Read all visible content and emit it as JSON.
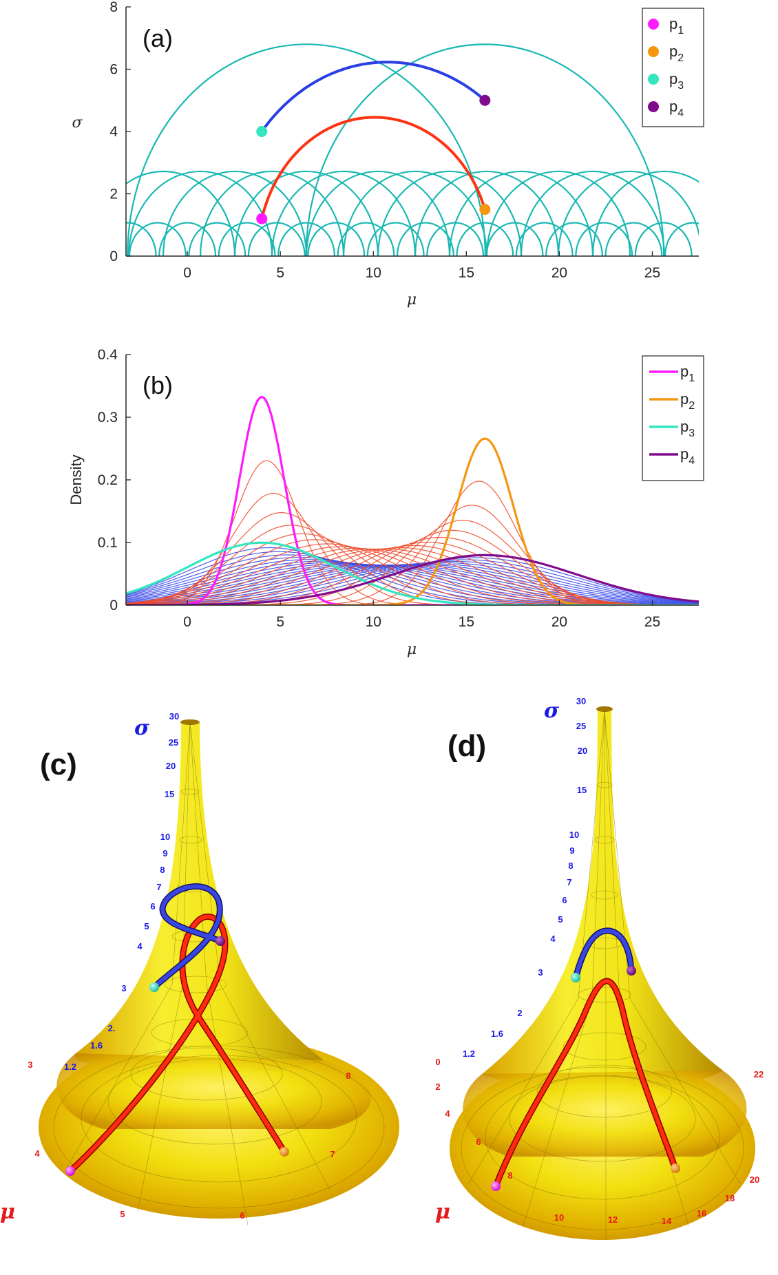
{
  "chart_data": [
    {
      "panel": "(a)",
      "type": "line",
      "xlabel": "μ",
      "ylabel": "σ",
      "xlim": [
        -3.3,
        27.5
      ],
      "ylim": [
        0,
        8
      ],
      "xticks": [
        "0",
        "5",
        "10",
        "15",
        "20",
        "25"
      ],
      "yticks": [
        "0",
        "2",
        "4",
        "6",
        "8"
      ],
      "legend": {
        "position": "top-right",
        "entries": [
          "p1",
          "p2",
          "p3",
          "p4"
        ]
      },
      "points": [
        {
          "name": "p1",
          "mu": 4,
          "sigma": 1.2,
          "color": "#ff1aff"
        },
        {
          "name": "p2",
          "mu": 16,
          "sigma": 1.5,
          "color": "#f5960f"
        },
        {
          "name": "p3",
          "mu": 4,
          "sigma": 4.0,
          "color": "#33e6bf"
        },
        {
          "name": "p4",
          "mu": 16,
          "sigma": 5.0,
          "color": "#800b8c"
        }
      ],
      "geodesics": [
        {
          "from": "p1",
          "to": "p2",
          "color": "#ff3311"
        },
        {
          "from": "p3",
          "to": "p4",
          "color": "#2a3ee6"
        }
      ],
      "tessellation_color": "#19b8b3"
    },
    {
      "panel": "(b)",
      "type": "line",
      "xlabel": "μ",
      "ylabel": "Density",
      "xlim": [
        -3.3,
        27.5
      ],
      "ylim": [
        0,
        0.4
      ],
      "xticks": [
        "0",
        "5",
        "10",
        "15",
        "20",
        "25"
      ],
      "yticks": [
        "0",
        "0.1",
        "0.2",
        "0.3",
        "0.4"
      ],
      "legend": {
        "position": "top-right",
        "entries": [
          "p1",
          "p2",
          "p3",
          "p4"
        ]
      },
      "series": [
        {
          "name": "p1",
          "mu": 4,
          "sigma": 1.2,
          "color": "#ff1aff"
        },
        {
          "name": "p2",
          "mu": 16,
          "sigma": 1.5,
          "color": "#f5960f"
        },
        {
          "name": "p3",
          "mu": 4,
          "sigma": 4.0,
          "color": "#33e6bf"
        },
        {
          "name": "p4",
          "mu": 16,
          "sigma": 5.0,
          "color": "#800b8c"
        }
      ],
      "interpolations": 20
    },
    {
      "panel": "(c)",
      "type": "surface",
      "axis_sigma": "σ",
      "axis_mu": "μ",
      "sigma_ticks": [
        "30",
        "25",
        "20",
        "15",
        "10",
        "9",
        "8",
        "7",
        "6",
        "5",
        "4",
        "3",
        "2.",
        "1.6",
        "1.2"
      ],
      "mu_ticks": [
        "3",
        "4",
        "5",
        "6",
        "7",
        "8"
      ]
    },
    {
      "panel": "(d)",
      "type": "surface",
      "axis_sigma": "σ",
      "axis_mu": "μ",
      "sigma_ticks": [
        "30",
        "25",
        "20",
        "15",
        "10",
        "9",
        "8",
        "7",
        "6",
        "5",
        "4",
        "3",
        "2",
        "1.6",
        "1.2"
      ],
      "mu_ticks": [
        "0",
        "2",
        "4",
        "6",
        "8",
        "10",
        "12",
        "14",
        "16",
        "18",
        "20",
        "22"
      ]
    }
  ],
  "legend_labels": {
    "a": [
      {
        "base": "p",
        "sub": "1"
      },
      {
        "base": "p",
        "sub": "2"
      },
      {
        "base": "p",
        "sub": "3"
      },
      {
        "base": "p",
        "sub": "4"
      }
    ],
    "b": [
      {
        "base": "p",
        "sub": "1"
      },
      {
        "base": "p",
        "sub": "2"
      },
      {
        "base": "p",
        "sub": "3"
      },
      {
        "base": "p",
        "sub": "4"
      }
    ]
  },
  "colors": {
    "p1": "#ff1aff",
    "p2": "#f5960f",
    "p3": "#33e6bf",
    "p4": "#800b8c",
    "geodesic_red": "#ff3311",
    "geodesic_blue": "#2a3ee6",
    "tessellation": "#19b8b3",
    "surface": "#e8e000"
  }
}
